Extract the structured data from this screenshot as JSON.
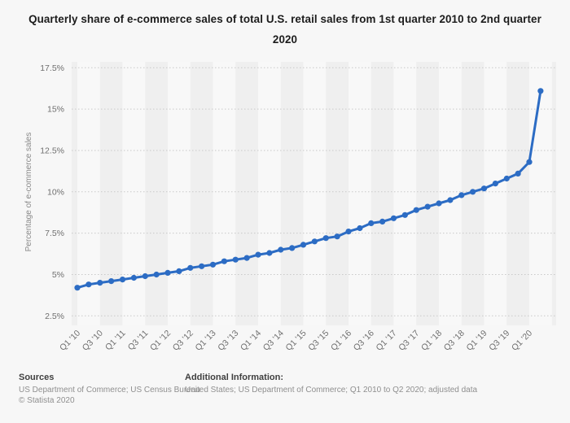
{
  "title": "Quarterly share of e-commerce sales of total U.S. retail sales from 1st quarter 2010 to 2nd quarter 2020",
  "chart_data": {
    "type": "line",
    "x": [
      "Q1 '10",
      "Q2 '10",
      "Q3 '10",
      "Q4 '10",
      "Q1 '11",
      "Q2 '11",
      "Q3 '11",
      "Q4 '11",
      "Q1 '12",
      "Q2 '12",
      "Q3 '12",
      "Q4 '12",
      "Q1 '13",
      "Q2 '13",
      "Q3 '13",
      "Q4 '13",
      "Q1 '14",
      "Q2 '14",
      "Q3 '14",
      "Q4 '14",
      "Q1 '15",
      "Q2 '15",
      "Q3 '15",
      "Q4 '15",
      "Q1 '16",
      "Q2 '16",
      "Q3 '16",
      "Q4 '16",
      "Q1 '17",
      "Q2 '17",
      "Q3 '17",
      "Q4 '17",
      "Q1 '18",
      "Q2 '18",
      "Q3 '18",
      "Q4 '18",
      "Q1 '19",
      "Q2 '19",
      "Q3 '19",
      "Q4 '19",
      "Q1 '20",
      "Q2 '20"
    ],
    "values": [
      4.2,
      4.4,
      4.5,
      4.6,
      4.7,
      4.8,
      4.9,
      5.0,
      5.1,
      5.2,
      5.4,
      5.5,
      5.6,
      5.8,
      5.9,
      6.0,
      6.2,
      6.3,
      6.5,
      6.6,
      6.8,
      7.0,
      7.2,
      7.3,
      7.6,
      7.8,
      8.1,
      8.2,
      8.4,
      8.6,
      8.9,
      9.1,
      9.3,
      9.5,
      9.8,
      10.0,
      10.2,
      10.5,
      10.8,
      11.1,
      11.8,
      16.1
    ],
    "x_tick_every": 2,
    "ylabel": "Percentage of e-commerce sales",
    "xlabel": "",
    "ylim": [
      2.5,
      17.5
    ],
    "ytick_values": [
      2.5,
      5,
      7.5,
      10,
      12.5,
      15,
      17.5
    ],
    "ytick_labels": [
      "2.5%",
      "5%",
      "7.5%",
      "10%",
      "12.5%",
      "15%",
      "17.5%"
    ],
    "grid": "horizontal-dotted",
    "legend": "none",
    "line_color": "#2c6cc4",
    "band_color_dark": "#efefef",
    "band_color_light": "#f8f8f8",
    "grid_color": "#c9c9c9"
  },
  "footer": {
    "sources_heading": "Sources",
    "sources_line": "US Department of Commerce; US Census Bureau",
    "copyright": "© Statista 2020",
    "additional_heading": "Additional Information:",
    "additional_line": "United States; US Department of Commerce; Q1 2010 to Q2 2020; adjusted data"
  }
}
